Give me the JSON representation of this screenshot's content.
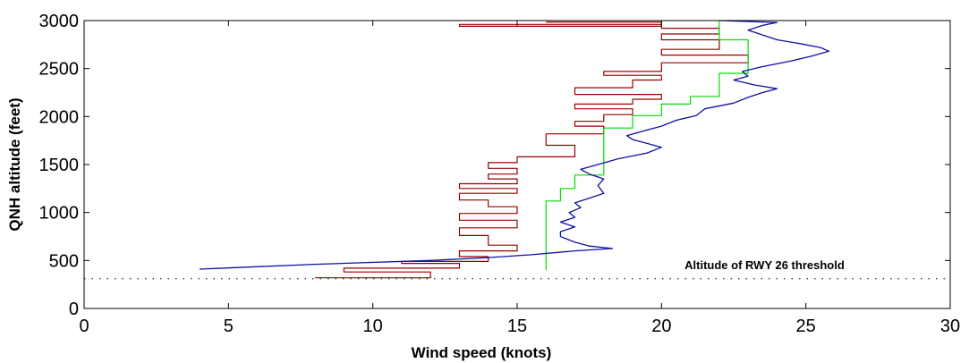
{
  "chart_data": {
    "type": "line",
    "title": "",
    "xlabel": "Wind speed (knots)",
    "ylabel": "QNH altitude (feet)",
    "xlim": [
      0,
      30
    ],
    "ylim": [
      0,
      3000
    ],
    "x_ticks": [
      "0",
      "5",
      "10",
      "15",
      "20",
      "25",
      "30"
    ],
    "y_ticks": [
      "0",
      "500",
      "1000",
      "1500",
      "2000",
      "2500",
      "3000"
    ],
    "grid": false,
    "reference_line": {
      "y": 310,
      "style": "dotted"
    },
    "annotation": {
      "text": "Altitude of RWY 26 threshold",
      "x": 20.8,
      "y": 410
    },
    "series": [
      {
        "color": "#990000",
        "style": "step",
        "points": [
          [
            8,
            320
          ],
          [
            12,
            320
          ],
          [
            12,
            380
          ],
          [
            9,
            380
          ],
          [
            9,
            420
          ],
          [
            13,
            420
          ],
          [
            13,
            470
          ],
          [
            11,
            470
          ],
          [
            11,
            490
          ],
          [
            14,
            490
          ],
          [
            14,
            540
          ],
          [
            13,
            540
          ],
          [
            13,
            600
          ],
          [
            15,
            600
          ],
          [
            15,
            660
          ],
          [
            14,
            660
          ],
          [
            14,
            760
          ],
          [
            13,
            760
          ],
          [
            13,
            840
          ],
          [
            15,
            840
          ],
          [
            15,
            920
          ],
          [
            13,
            920
          ],
          [
            13,
            990
          ],
          [
            15,
            990
          ],
          [
            15,
            1060
          ],
          [
            14,
            1060
          ],
          [
            14,
            1130
          ],
          [
            13,
            1130
          ],
          [
            13,
            1200
          ],
          [
            15,
            1200
          ],
          [
            15,
            1250
          ],
          [
            13,
            1250
          ],
          [
            13,
            1300
          ],
          [
            15,
            1300
          ],
          [
            15,
            1350
          ],
          [
            14,
            1350
          ],
          [
            14,
            1400
          ],
          [
            15,
            1400
          ],
          [
            15,
            1460
          ],
          [
            14,
            1460
          ],
          [
            14,
            1520
          ],
          [
            15,
            1520
          ],
          [
            15,
            1580
          ],
          [
            17,
            1580
          ],
          [
            17,
            1700
          ],
          [
            16,
            1700
          ],
          [
            16,
            1820
          ],
          [
            18,
            1820
          ],
          [
            18,
            1900
          ],
          [
            17,
            1900
          ],
          [
            17,
            1950
          ],
          [
            18,
            1950
          ],
          [
            18,
            2020
          ],
          [
            19,
            2020
          ],
          [
            19,
            2080
          ],
          [
            17,
            2080
          ],
          [
            17,
            2130
          ],
          [
            19,
            2130
          ],
          [
            19,
            2180
          ],
          [
            20,
            2180
          ],
          [
            20,
            2230
          ],
          [
            17,
            2230
          ],
          [
            17,
            2300
          ],
          [
            19,
            2300
          ],
          [
            19,
            2380
          ],
          [
            20,
            2380
          ],
          [
            20,
            2430
          ],
          [
            18,
            2430
          ],
          [
            18,
            2470
          ],
          [
            20,
            2470
          ],
          [
            20,
            2560
          ],
          [
            23,
            2560
          ],
          [
            23,
            2640
          ],
          [
            20,
            2640
          ],
          [
            20,
            2700
          ],
          [
            22,
            2700
          ],
          [
            22,
            2800
          ],
          [
            20,
            2800
          ],
          [
            20,
            2860
          ],
          [
            22,
            2860
          ],
          [
            22,
            2920
          ],
          [
            20,
            2920
          ],
          [
            20,
            2960
          ],
          [
            13,
            2960
          ],
          [
            13,
            2940
          ],
          [
            20,
            2940
          ],
          [
            20,
            2985
          ],
          [
            16,
            2985
          ]
        ]
      },
      {
        "color": "#00dd00",
        "style": "step",
        "points": [
          [
            16,
            400
          ],
          [
            16,
            1120
          ],
          [
            16.5,
            1120
          ],
          [
            16.5,
            1250
          ],
          [
            17,
            1250
          ],
          [
            17,
            1390
          ],
          [
            18,
            1390
          ],
          [
            18,
            1780
          ],
          [
            18,
            1880
          ],
          [
            19,
            1880
          ],
          [
            19,
            2010
          ],
          [
            20,
            2010
          ],
          [
            20,
            2130
          ],
          [
            21,
            2130
          ],
          [
            21,
            2210
          ],
          [
            22,
            2210
          ],
          [
            22,
            2450
          ],
          [
            23,
            2450
          ],
          [
            23,
            2800
          ],
          [
            22,
            2800
          ],
          [
            22,
            3000
          ]
        ]
      },
      {
        "color": "#1010a0",
        "style": "line",
        "points": [
          [
            4,
            410
          ],
          [
            8,
            460
          ],
          [
            12,
            500
          ],
          [
            14,
            530
          ],
          [
            15.5,
            560
          ],
          [
            17,
            600
          ],
          [
            18.3,
            625
          ],
          [
            17.5,
            650
          ],
          [
            17,
            690
          ],
          [
            16.5,
            750
          ],
          [
            16.5,
            800
          ],
          [
            17,
            850
          ],
          [
            16.5,
            900
          ],
          [
            17,
            950
          ],
          [
            16.8,
            1000
          ],
          [
            17.2,
            1050
          ],
          [
            17,
            1100
          ],
          [
            17.5,
            1150
          ],
          [
            18,
            1200
          ],
          [
            17.8,
            1280
          ],
          [
            18,
            1350
          ],
          [
            17.5,
            1400
          ],
          [
            17.2,
            1450
          ],
          [
            17.8,
            1500
          ],
          [
            18.5,
            1560
          ],
          [
            19.5,
            1620
          ],
          [
            20,
            1680
          ],
          [
            19.5,
            1720
          ],
          [
            19,
            1760
          ],
          [
            18.8,
            1800
          ],
          [
            19.5,
            1860
          ],
          [
            20,
            1900
          ],
          [
            20.5,
            1960
          ],
          [
            21.2,
            2010
          ],
          [
            21.5,
            2080
          ],
          [
            22.5,
            2140
          ],
          [
            23,
            2200
          ],
          [
            23.5,
            2250
          ],
          [
            24,
            2290
          ],
          [
            23.2,
            2330
          ],
          [
            22.5,
            2380
          ],
          [
            23,
            2420
          ],
          [
            22.8,
            2470
          ],
          [
            23.5,
            2520
          ],
          [
            24.5,
            2580
          ],
          [
            25.2,
            2630
          ],
          [
            25.8,
            2680
          ],
          [
            25.5,
            2720
          ],
          [
            24.8,
            2760
          ],
          [
            24,
            2800
          ],
          [
            23.5,
            2850
          ],
          [
            23,
            2900
          ],
          [
            23.5,
            2950
          ],
          [
            24,
            2980
          ],
          [
            22,
            3000
          ]
        ]
      }
    ]
  }
}
